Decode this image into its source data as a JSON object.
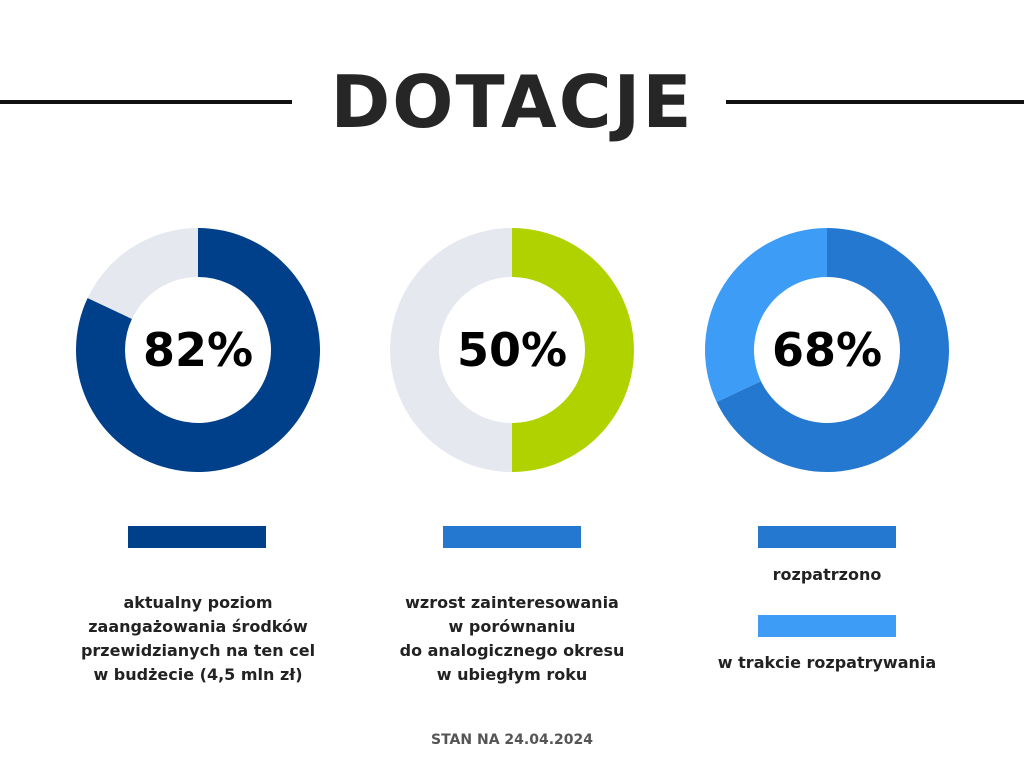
{
  "title": "DOTACJE",
  "footer": "STAN NA 24.04.2024",
  "colors": {
    "track": "#e5e8ee",
    "navy": "#003f8a",
    "lime": "#b0d300",
    "blue": "#2478cf",
    "light_blue": "#3d9cf6"
  },
  "chart_data": [
    {
      "type": "pie",
      "donut": true,
      "center_label": "82%",
      "values": [
        82,
        18
      ],
      "colors": [
        "#003f8a",
        "#e5e8ee"
      ],
      "legend": [
        {
          "color": "#003f8a",
          "label": "aktualny poziom zaangażowania środków przewidzianych na ten cel w budżecie (4,5 mln zł)"
        }
      ]
    },
    {
      "type": "pie",
      "donut": true,
      "center_label": "50%",
      "values": [
        50,
        50
      ],
      "colors": [
        "#b0d300",
        "#e5e8ee"
      ],
      "legend": [
        {
          "color": "#2478cf",
          "label": "wzrost zainteresowania w porównaniu do analogicznego okresu w ubiegłym roku"
        }
      ]
    },
    {
      "type": "pie",
      "donut": true,
      "center_label": "68%",
      "values": [
        68,
        32
      ],
      "colors": [
        "#2478cf",
        "#3d9cf6"
      ],
      "legend": [
        {
          "color": "#2478cf",
          "label": "rozpatrzono"
        },
        {
          "color": "#3d9cf6",
          "label": "w trakcie rozpatrywania"
        }
      ]
    }
  ],
  "captions": {
    "c1": [
      "aktualny poziom",
      "zaangażowania środków",
      "przewidzianych na ten cel",
      "w budżecie (4,5 mln zł)"
    ],
    "c2": [
      "wzrost zainteresowania",
      "w porównaniu",
      "do analogicznego okresu",
      "w ubiegłym roku"
    ],
    "c3a": "rozpatrzono",
    "c3b": "w trakcie rozpatrywania"
  }
}
